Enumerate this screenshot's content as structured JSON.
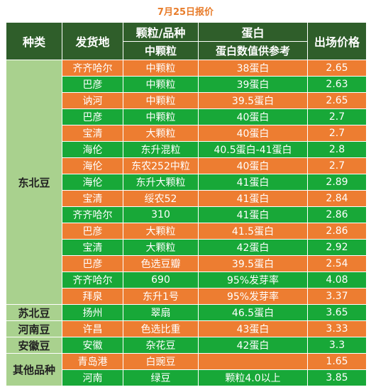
{
  "title": "7月25日报价",
  "header": {
    "category": "种类",
    "origin": "发货地",
    "grain_variety": "颗粒/品种",
    "grain_sub": "中颗粒",
    "protein": "蛋白",
    "protein_sub": "蛋白数值供参考",
    "price": "出场价格"
  },
  "colors": {
    "header_bg": "#2f5e2a",
    "category_bg": "#a9d18e",
    "green_row": "#18a838",
    "orange_row": "#ed7d31",
    "title_color": "#e87c2a"
  },
  "groups": [
    {
      "category": "东北豆",
      "rows": [
        {
          "origin": "齐齐哈尔",
          "variety": "中颗粒",
          "protein": "38蛋白",
          "price": "2.65"
        },
        {
          "origin": "巴彦",
          "variety": "中颗粒",
          "protein": "39蛋白",
          "price": "2.63"
        },
        {
          "origin": "讷河",
          "variety": "中颗粒",
          "protein": "39.5蛋白",
          "price": "2.65"
        },
        {
          "origin": "巴彦",
          "variety": "中颗粒",
          "protein": "40蛋白",
          "price": "2.7"
        },
        {
          "origin": "宝清",
          "variety": "大颗粒",
          "protein": "40蛋白",
          "price": "2.7"
        },
        {
          "origin": "海伦",
          "variety": "东升混粒",
          "protein": "40.5蛋白-41蛋白",
          "price": "2.8"
        },
        {
          "origin": "海伦",
          "variety": "东农252中粒",
          "protein": "40蛋白",
          "price": "2.7"
        },
        {
          "origin": "海伦",
          "variety": "东升大颗粒",
          "protein": "41蛋白",
          "price": "2.89"
        },
        {
          "origin": "宝清",
          "variety": "绥农52",
          "protein": "41蛋白",
          "price": "2.84"
        },
        {
          "origin": "齐齐哈尔",
          "variety": "310",
          "protein": "41蛋白",
          "price": "2.86"
        },
        {
          "origin": "巴彦",
          "variety": "大颗粒",
          "protein": "41.5蛋白",
          "price": "2.86"
        },
        {
          "origin": "宝清",
          "variety": "大颗粒",
          "protein": "42蛋白",
          "price": "2.92"
        },
        {
          "origin": "巴彦",
          "variety": "色选豆瓣",
          "protein": "39.5蛋白",
          "price": "2.54"
        },
        {
          "origin": "齐齐哈尔",
          "variety": "690",
          "protein": "95%发芽率",
          "price": "4.08"
        },
        {
          "origin": "拜泉",
          "variety": "东升1号",
          "protein": "95%发芽率",
          "price": "3.37"
        }
      ]
    },
    {
      "category": "苏北豆",
      "rows": [
        {
          "origin": "扬州",
          "variety": "翠扇",
          "protein": "46.5蛋白",
          "price": "3.65"
        }
      ]
    },
    {
      "category": "河南豆",
      "rows": [
        {
          "origin": "许昌",
          "variety": "色选比重",
          "protein": "43蛋白",
          "price": "3.33"
        }
      ]
    },
    {
      "category": "安徽豆",
      "rows": [
        {
          "origin": "安徽",
          "variety": "杂花豆",
          "protein": "42蛋白",
          "price": "3.3"
        }
      ]
    },
    {
      "category": "其他品种",
      "rows": [
        {
          "origin": "青岛港",
          "variety": "白豌豆",
          "protein": "",
          "price": "1.65"
        },
        {
          "origin": "河南",
          "variety": "绿豆",
          "protein": "颗粒4.0以上",
          "price": "3.85"
        }
      ]
    }
  ]
}
